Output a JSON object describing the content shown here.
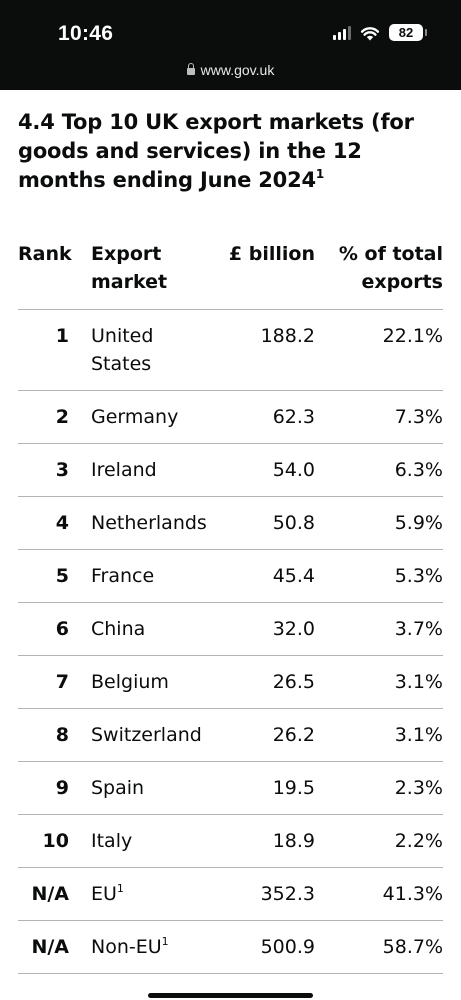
{
  "status_bar": {
    "time": "10:46",
    "battery": "82",
    "url": "www.gov.uk"
  },
  "heading": {
    "text": "4.4 Top 10 UK export markets (for goods and services) in the 12 months ending June 2024",
    "footnote": "1"
  },
  "table": {
    "headers": {
      "rank": "Rank",
      "market": "Export market",
      "value": "£ billion",
      "share": "% of total exports"
    },
    "rows": [
      {
        "rank": "1",
        "market": "United States",
        "footnote": "",
        "value": "188.2",
        "share": "22.1%"
      },
      {
        "rank": "2",
        "market": "Germany",
        "footnote": "",
        "value": "62.3",
        "share": "7.3%"
      },
      {
        "rank": "3",
        "market": "Ireland",
        "footnote": "",
        "value": "54.0",
        "share": "6.3%"
      },
      {
        "rank": "4",
        "market": "Netherlands",
        "footnote": "",
        "value": "50.8",
        "share": "5.9%"
      },
      {
        "rank": "5",
        "market": "France",
        "footnote": "",
        "value": "45.4",
        "share": "5.3%"
      },
      {
        "rank": "6",
        "market": "China",
        "footnote": "",
        "value": "32.0",
        "share": "3.7%"
      },
      {
        "rank": "7",
        "market": "Belgium",
        "footnote": "",
        "value": "26.5",
        "share": "3.1%"
      },
      {
        "rank": "8",
        "market": "Switzerland",
        "footnote": "",
        "value": "26.2",
        "share": "3.1%"
      },
      {
        "rank": "9",
        "market": "Spain",
        "footnote": "",
        "value": "19.5",
        "share": "2.3%"
      },
      {
        "rank": "10",
        "market": "Italy",
        "footnote": "",
        "value": "18.9",
        "share": "2.2%"
      },
      {
        "rank": "N/A",
        "market": "EU",
        "footnote": "1",
        "value": "352.3",
        "share": "41.3%"
      },
      {
        "rank": "N/A",
        "market": "Non-EU",
        "footnote": "1",
        "value": "500.9",
        "share": "58.7%"
      }
    ]
  }
}
